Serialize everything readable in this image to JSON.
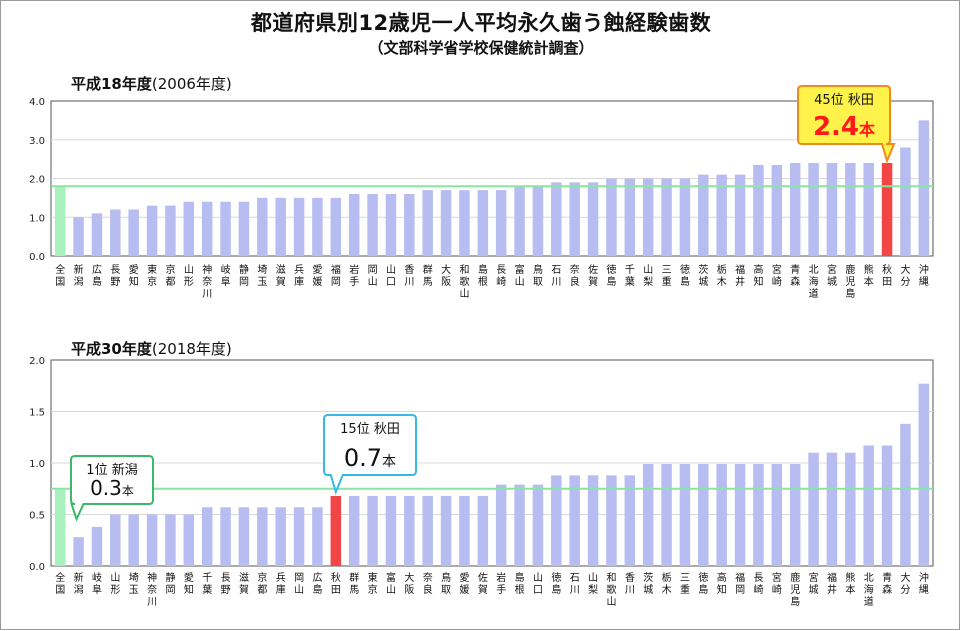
{
  "title": "都道府県別12歳児一人平均永久歯う蝕経験歯数",
  "subtitle": "（文部科学省学校保健統計調査）",
  "chart_data": [
    {
      "type": "bar",
      "title_bold": "平成18年度",
      "title_rest": "(2006年度)",
      "ylim": [
        0,
        4
      ],
      "yticks": [
        "0.0",
        "1.0",
        "2.0",
        "3.0",
        "4.0"
      ],
      "reference_value": 1.8,
      "grid": true,
      "colors": {
        "national": "#a8f0bc",
        "highlight": "#f24646",
        "default": "#b7bdf0",
        "reference": "#86e6a2"
      },
      "categories": [
        "全国",
        "新潟",
        "広島",
        "長野",
        "愛知",
        "東京",
        "京都",
        "山形",
        "神奈川",
        "岐阜",
        "静岡",
        "埼玉",
        "滋賀",
        "兵庫",
        "愛媛",
        "福岡",
        "岩手",
        "岡山",
        "山口",
        "香川",
        "群馬",
        "大阪",
        "和歌山",
        "島根",
        "長崎",
        "富山",
        "鳥取",
        "石川",
        "奈良",
        "佐賀",
        "徳島",
        "千葉",
        "山梨",
        "三重",
        "徳島",
        "茨城",
        "栃木",
        "福井",
        "高知",
        "宮崎",
        "青森",
        "北海道",
        "宮城",
        "鹿児島",
        "熊本",
        "秋田",
        "大分",
        "沖縄"
      ],
      "values": [
        1.8,
        1.0,
        1.1,
        1.2,
        1.2,
        1.3,
        1.3,
        1.4,
        1.4,
        1.4,
        1.4,
        1.5,
        1.5,
        1.5,
        1.5,
        1.5,
        1.6,
        1.6,
        1.6,
        1.6,
        1.7,
        1.7,
        1.7,
        1.7,
        1.7,
        1.8,
        1.8,
        1.9,
        1.9,
        1.9,
        2.0,
        2.0,
        2.0,
        2.0,
        2.0,
        2.1,
        2.1,
        2.1,
        2.35,
        2.35,
        2.4,
        2.4,
        2.4,
        2.4,
        2.4,
        2.4,
        2.8,
        3.5
      ],
      "highlight_index": 45,
      "callout": {
        "line1": "45位 秋田",
        "value": "2.4",
        "unit": "本"
      }
    },
    {
      "type": "bar",
      "title_bold": "平成30年度",
      "title_rest": "(2018年度)",
      "ylim": [
        0,
        2
      ],
      "yticks": [
        "0.0",
        "0.5",
        "1.0",
        "1.5",
        "2.0"
      ],
      "reference_value": 0.75,
      "grid": true,
      "colors": {
        "national": "#a8f0bc",
        "highlight": "#f24646",
        "default": "#b7bdf0",
        "reference": "#86e6a2"
      },
      "categories": [
        "全国",
        "新潟",
        "岐阜",
        "山形",
        "埼玉",
        "神奈川",
        "静岡",
        "愛知",
        "千葉",
        "長野",
        "滋賀",
        "京都",
        "兵庫",
        "岡山",
        "広島",
        "秋田",
        "群馬",
        "東京",
        "富山",
        "大阪",
        "奈良",
        "鳥取",
        "愛媛",
        "佐賀",
        "岩手",
        "島根",
        "山口",
        "徳島",
        "石川",
        "山梨",
        "和歌山",
        "香川",
        "茨城",
        "栃木",
        "三重",
        "徳島",
        "高知",
        "福岡",
        "長崎",
        "宮崎",
        "鹿児島",
        "宮城",
        "福井",
        "熊本",
        "北海道",
        "青森",
        "大分",
        "沖縄"
      ],
      "values": [
        0.74,
        0.28,
        0.38,
        0.5,
        0.5,
        0.5,
        0.5,
        0.5,
        0.57,
        0.57,
        0.57,
        0.57,
        0.57,
        0.57,
        0.57,
        0.68,
        0.68,
        0.68,
        0.68,
        0.68,
        0.68,
        0.68,
        0.68,
        0.68,
        0.79,
        0.79,
        0.79,
        0.88,
        0.88,
        0.88,
        0.88,
        0.88,
        0.99,
        0.99,
        0.99,
        0.99,
        0.99,
        0.99,
        0.99,
        0.99,
        0.99,
        1.1,
        1.1,
        1.1,
        1.17,
        1.17,
        1.38,
        1.77
      ],
      "highlight_index": 15,
      "callouts": [
        {
          "line1": "15位 秋田",
          "value": "0.7",
          "unit": "本"
        },
        {
          "line1": "1位 新潟",
          "value": "0.3",
          "unit": "本"
        }
      ]
    }
  ]
}
